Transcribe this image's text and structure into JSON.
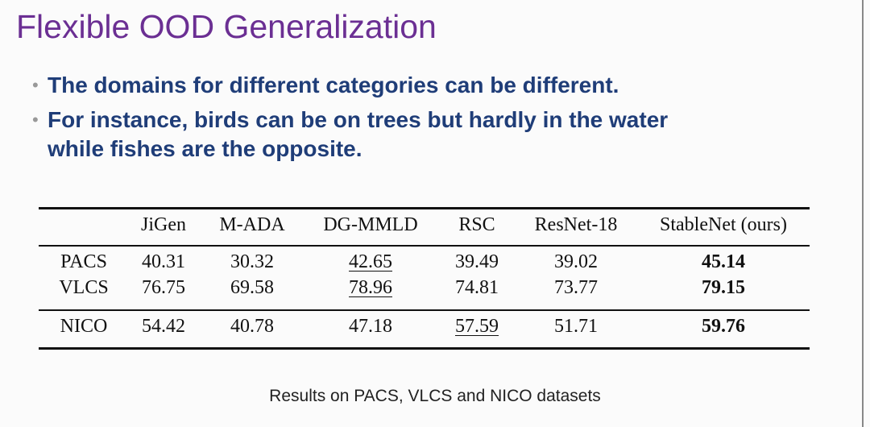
{
  "slide": {
    "title": "Flexible OOD Generalization",
    "bullets": [
      {
        "lines": [
          "The domains for different categories can be different."
        ]
      },
      {
        "lines": [
          "For instance, birds can be on trees but hardly in the water",
          "while fishes are the opposite."
        ]
      }
    ],
    "caption": "Results on PACS, VLCS and NICO datasets"
  },
  "table": {
    "columns": [
      "",
      "JiGen",
      "M-ADA",
      "DG-MMLD",
      "RSC",
      "ResNet-18",
      "StableNet (ours)"
    ],
    "rows": [
      {
        "label": "PACS",
        "values": [
          "40.31",
          "30.32",
          "42.65",
          "39.49",
          "39.02",
          "45.14"
        ],
        "underline": 2,
        "bold": 5
      },
      {
        "label": "VLCS",
        "values": [
          "76.75",
          "69.58",
          "78.96",
          "74.81",
          "73.77",
          "79.15"
        ],
        "underline": 2,
        "bold": 5
      },
      {
        "label": "NICO",
        "values": [
          "54.42",
          "40.78",
          "47.18",
          "57.59",
          "51.71",
          "59.76"
        ],
        "underline": 3,
        "bold": 5
      }
    ]
  },
  "colors": {
    "title": "#6b2f93",
    "bullet_text": "#1f3d78"
  }
}
